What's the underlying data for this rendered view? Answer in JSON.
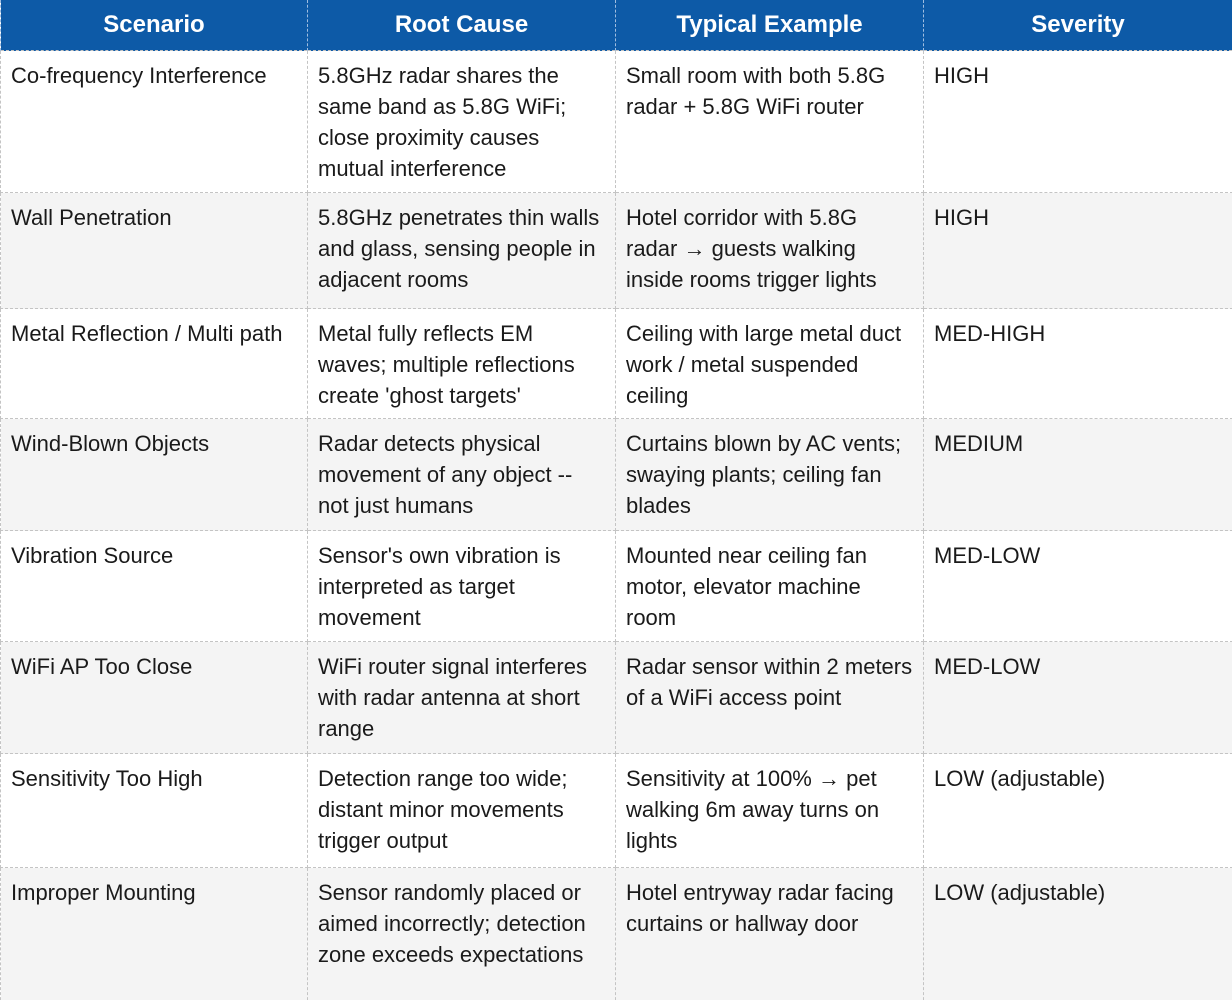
{
  "table": {
    "headers": [
      "Scenario",
      "Root Cause",
      "Typical Example",
      "Severity"
    ],
    "rows": [
      {
        "scenario": "Co-frequency Interference",
        "root_cause": "5.8GHz radar shares the same band as 5.8G WiFi; close proximity causes mutual interference",
        "example": "Small room with both 5.8G radar + 5.8G WiFi router",
        "severity": "HIGH"
      },
      {
        "scenario": "Wall Penetration",
        "root_cause": "5.8GHz penetrates thin walls and glass, sensing people in adjacent rooms",
        "example": "Hotel corridor with 5.8G radar → guests walking inside rooms trigger lights",
        "severity": "HIGH"
      },
      {
        "scenario": "Metal Reflection / Multi path",
        "root_cause": "Metal fully reflects EM waves; multiple reflections create 'ghost targets'",
        "example": "Ceiling with large metal duct work / metal suspended ceiling",
        "severity": "MED-HIGH"
      },
      {
        "scenario": "Wind-Blown Objects",
        "root_cause": "Radar detects physical movement of any object -- not just humans",
        "example": "Curtains blown by AC vents; swaying plants; ceiling fan blades",
        "severity": "MEDIUM"
      },
      {
        "scenario": "Vibration Source",
        "root_cause": "Sensor's own vibration is interpreted as target movement",
        "example": "Mounted near ceiling fan motor, elevator machine room",
        "severity": "MED-LOW"
      },
      {
        "scenario": "WiFi AP Too Close",
        "root_cause": "WiFi router signal interferes with radar antenna at short range",
        "example": "Radar sensor within 2 meters of a WiFi access point",
        "severity": "MED-LOW"
      },
      {
        "scenario": "Sensitivity Too High",
        "root_cause": "Detection range too wide; distant minor movements trigger output",
        "example": "Sensitivity at 100% → pet walking 6m away turns on lights",
        "severity": "LOW (adjustable)"
      },
      {
        "scenario": "Improper Mounting",
        "root_cause": "Sensor randomly placed or aimed incorrectly; detection zone exceeds expectations",
        "example": "Hotel entryway radar facing curtains or hallway door",
        "severity": "LOW (adjustable)"
      }
    ]
  }
}
